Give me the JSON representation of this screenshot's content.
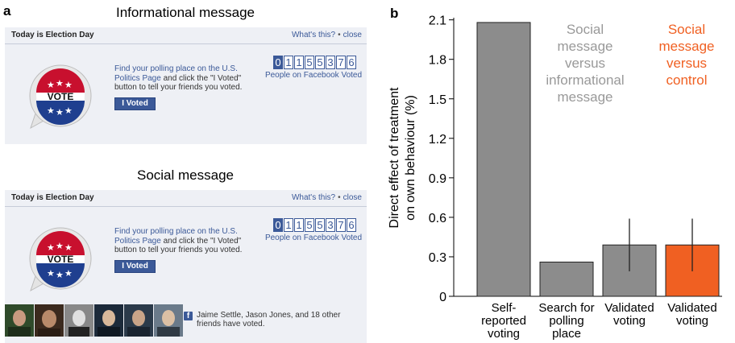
{
  "panel_a": {
    "letter": "a",
    "informational": {
      "title": "Informational message",
      "header": "Today is Election Day",
      "whats_this": "What's this?",
      "close": "close",
      "find_link": "Find your polling place on the U.S. Politics Page",
      "instruction": " and click the \"I Voted\" button to tell your friends you voted.",
      "button": "I Voted",
      "badge_text": "VOTE",
      "counter_digits": [
        "0",
        "1",
        "1",
        "5",
        "5",
        "3",
        "7",
        "6"
      ],
      "counter_label": "People on Facebook Voted"
    },
    "social": {
      "title": "Social message",
      "header": "Today is Election Day",
      "whats_this": "What's this?",
      "close": "close",
      "find_link": "Find your polling place on the U.S. Politics Page",
      "instruction": " and click the \"I Voted\" button to tell your friends you voted.",
      "button": "I Voted",
      "badge_text": "VOTE",
      "counter_digits": [
        "0",
        "1",
        "1",
        "5",
        "5",
        "3",
        "7",
        "6"
      ],
      "counter_label": "People on Facebook Voted",
      "friends_text": "Jaime Settle, Jason Jones, and 18 other friends have voted."
    },
    "colors": {
      "facebook_blue": "#3b5998",
      "badge_red": "#c8102e",
      "badge_blue": "#1f3f8f"
    }
  },
  "chart_data": {
    "type": "bar",
    "panel_letter": "b",
    "ylabel_lines": [
      "Direct effect of treatment",
      "on own behaviour (%)"
    ],
    "ylim": [
      0,
      2.2
    ],
    "yticks": [
      0,
      0.3,
      0.6,
      0.9,
      1.2,
      1.5,
      1.8,
      2.1
    ],
    "ytick_labels": [
      "0",
      "0.3",
      "0.6",
      "0.9",
      "1.2",
      "1.5",
      "1.8",
      "2.1"
    ],
    "bars": [
      {
        "label_lines": [
          "Self-",
          "reported",
          "voting"
        ],
        "value": 2.08,
        "error": null,
        "color": "#8c8c8c",
        "group": "Social message versus informational message"
      },
      {
        "label_lines": [
          "Search for",
          "polling",
          "place"
        ],
        "value": 0.26,
        "error": null,
        "color": "#8c8c8c",
        "group": "Social message versus informational message"
      },
      {
        "label_lines": [
          "Validated",
          "voting"
        ],
        "value": 0.39,
        "error": [
          0.19,
          0.59
        ],
        "color": "#8c8c8c",
        "group": "Social message versus informational message"
      },
      {
        "label_lines": [
          "Validated",
          "voting"
        ],
        "value": 0.39,
        "error": [
          0.19,
          0.59
        ],
        "color": "#f06022",
        "group": "Social message versus control"
      }
    ],
    "legend": [
      {
        "lines": [
          "Social",
          "message",
          "versus",
          "informational",
          "message"
        ],
        "color": "#999999"
      },
      {
        "lines": [
          "Social",
          "message",
          "versus",
          "control"
        ],
        "color": "#f06022"
      }
    ],
    "grid": false
  }
}
